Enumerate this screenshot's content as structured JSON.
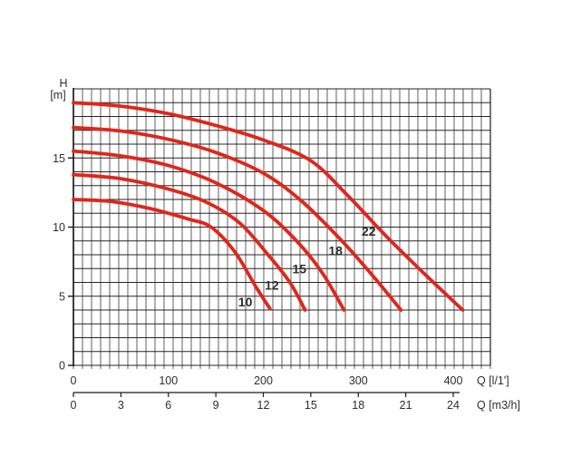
{
  "page": {
    "background": "#ffffff"
  },
  "chart_data": {
    "type": "line",
    "title": "",
    "legend_position": "none",
    "grid": "on",
    "y_axis": {
      "title_top": "H",
      "title_bottom": "[m]",
      "range": [
        0,
        20
      ],
      "grid_step": 1,
      "tick_values": [
        0,
        5,
        10,
        15
      ]
    },
    "x_axis_primary": {
      "title": "Q [l/1']",
      "range": [
        0,
        439
      ],
      "grid_step": 10,
      "tick_values": [
        0,
        100,
        200,
        300,
        400
      ]
    },
    "x_axis_secondary": {
      "title": "Q [m3/h]",
      "range": [
        0,
        24
      ],
      "tick_values": [
        0,
        3,
        6,
        9,
        12,
        15,
        18,
        21,
        24
      ]
    },
    "style": {
      "curve_color": "#e0261b",
      "grid_vertical_color": "#8d8d8d",
      "grid_horizontal_color": "#262626",
      "axis_color": "#1a1a1a",
      "text_color": "#2e2e2e",
      "curve_label_color": "#111111"
    },
    "series": [
      {
        "name": "22",
        "points": [
          [
            0,
            19.0
          ],
          [
            50,
            18.75
          ],
          [
            100,
            18.2
          ],
          [
            150,
            17.35
          ],
          [
            200,
            16.3
          ],
          [
            250,
            14.8
          ],
          [
            290,
            12.2
          ],
          [
            330,
            9.3
          ],
          [
            370,
            6.6
          ],
          [
            410,
            4.0
          ]
        ],
        "label_at": [
          311,
          9.7
        ]
      },
      {
        "name": "18",
        "points": [
          [
            0,
            17.2
          ],
          [
            50,
            16.95
          ],
          [
            100,
            16.35
          ],
          [
            150,
            15.4
          ],
          [
            200,
            13.9
          ],
          [
            240,
            11.9
          ],
          [
            280,
            9.2
          ],
          [
            315,
            6.5
          ],
          [
            345,
            4.0
          ]
        ],
        "label_at": [
          276,
          8.3
        ]
      },
      {
        "name": "15",
        "points": [
          [
            0,
            15.5
          ],
          [
            50,
            15.15
          ],
          [
            100,
            14.45
          ],
          [
            150,
            13.2
          ],
          [
            200,
            11.2
          ],
          [
            235,
            9.0
          ],
          [
            262,
            6.7
          ],
          [
            285,
            4.0
          ]
        ],
        "label_at": [
          238,
          7.0
        ]
      },
      {
        "name": "12",
        "points": [
          [
            0,
            13.8
          ],
          [
            50,
            13.5
          ],
          [
            100,
            12.75
          ],
          [
            140,
            11.8
          ],
          [
            175,
            10.3
          ],
          [
            205,
            8.0
          ],
          [
            228,
            6.0
          ],
          [
            244,
            4.0
          ]
        ],
        "label_at": [
          209,
          5.8
        ]
      },
      {
        "name": "10",
        "points": [
          [
            0,
            12.0
          ],
          [
            40,
            11.85
          ],
          [
            80,
            11.35
          ],
          [
            120,
            10.6
          ],
          [
            145,
            10.0
          ],
          [
            170,
            8.2
          ],
          [
            192,
            5.7
          ],
          [
            207,
            4.1
          ]
        ],
        "label_at": [
          181,
          4.6
        ]
      }
    ]
  }
}
